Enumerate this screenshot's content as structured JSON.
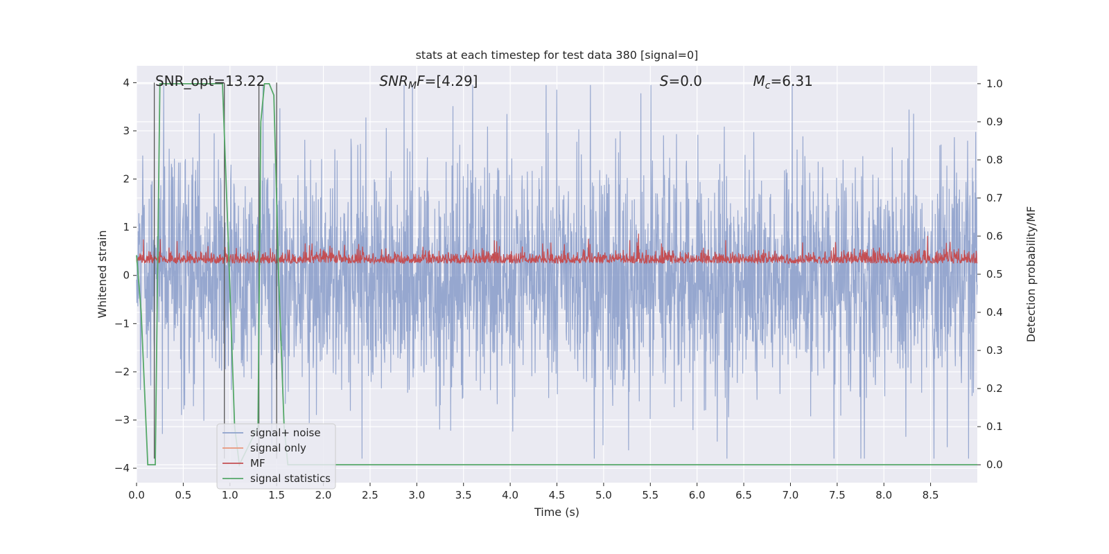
{
  "chart_data": {
    "type": "line",
    "title": "stats at each timestep for test data 380 [signal=0]",
    "xlabel": "Time (s)",
    "ylabel": "Whitened strain",
    "y2label": "Detection probability/MF",
    "xlim": [
      0.0,
      9.0
    ],
    "ylim": [
      -4.3,
      4.35
    ],
    "y2lim": [
      -0.047,
      1.047
    ],
    "xticks": [
      "0.0",
      "0.5",
      "1.0",
      "1.5",
      "2.0",
      "2.5",
      "3.0",
      "3.5",
      "4.0",
      "4.5",
      "5.0",
      "5.5",
      "6.0",
      "6.5",
      "7.0",
      "7.5",
      "8.0",
      "8.5"
    ],
    "yticks": [
      "4",
      "3",
      "2",
      "1",
      "0",
      "−1",
      "−2",
      "−3",
      "−4"
    ],
    "y2ticks": [
      "1.0",
      "0.9",
      "0.8",
      "0.7",
      "0.6",
      "0.5",
      "0.4",
      "0.3",
      "0.2",
      "0.1",
      "0.0"
    ],
    "grid": true,
    "legend_position": "lower-left",
    "annotations": [
      {
        "id": "snr-opt",
        "text": "SNR_opt=13.22",
        "x": 0.2,
        "y": 4.05
      },
      {
        "id": "snr-mf",
        "text": "[4.29]",
        "prefix": "SNR",
        "sub": "M",
        "mid": "F=",
        "x": 2.6,
        "y": 4.05
      },
      {
        "id": "s-val",
        "text": "=0.0",
        "prefix": "S",
        "x": 5.6,
        "y": 4.05
      },
      {
        "id": "mc-val",
        "text": "=6.31",
        "prefix": "M",
        "sub": "c",
        "x": 6.6,
        "y": 4.05
      }
    ],
    "series": [
      {
        "name": "signal+ noise",
        "color": "#8da0cb",
        "axis": "left",
        "kind": "noise",
        "amplitude_envelope": [
          2.0,
          3.0,
          2.2,
          3.9
        ],
        "value_range": [
          -3.8,
          3.95
        ]
      },
      {
        "name": "signal only",
        "color": "#e9967a",
        "axis": "left",
        "values": []
      },
      {
        "name": "MF",
        "color": "#c44e52",
        "axis": "left",
        "kind": "noise",
        "baseline": 0.3,
        "value_range": [
          0.0,
          1.0
        ]
      },
      {
        "name": "signal statistics",
        "color": "#55a868",
        "axis": "right",
        "x": [
          0.0,
          0.05,
          0.12,
          0.2,
          0.25,
          0.3,
          0.92,
          0.98,
          1.05,
          1.1,
          1.3,
          1.33,
          1.37,
          1.42,
          1.47,
          1.52,
          1.58,
          1.62,
          2.0,
          7.5,
          7.6,
          9.0
        ],
        "values": [
          0.55,
          0.4,
          0.0,
          0.0,
          1.0,
          1.0,
          1.0,
          0.6,
          0.1,
          0.0,
          0.1,
          0.9,
          1.0,
          1.0,
          0.97,
          0.5,
          0.1,
          0.0,
          0.0,
          0.0,
          0.0,
          0.0
        ]
      }
    ],
    "vlines": [
      {
        "x": 0.19,
        "y": [
          -3.8,
          4.0
        ]
      },
      {
        "x": 0.94,
        "y": [
          -3.8,
          4.0
        ]
      },
      {
        "x": 1.31,
        "y": [
          -3.8,
          4.0
        ]
      },
      {
        "x": 1.5,
        "y": [
          -3.8,
          4.0
        ]
      }
    ]
  }
}
